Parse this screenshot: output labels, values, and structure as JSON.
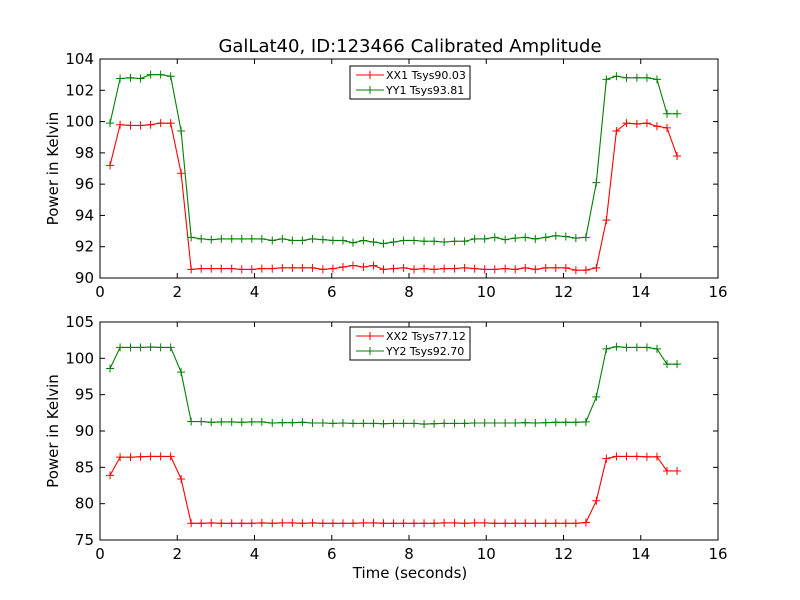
{
  "chart_data": [
    {
      "type": "line",
      "title": "GalLat40, ID:123466 Calibrated Amplitude",
      "xlabel": "",
      "ylabel": "Power in Kelvin",
      "xlim": [
        0,
        16
      ],
      "ylim": [
        90,
        104
      ],
      "xticks": [
        0,
        2,
        4,
        6,
        8,
        10,
        12,
        14,
        16
      ],
      "yticks": [
        90,
        92,
        94,
        96,
        98,
        100,
        102,
        104
      ],
      "grid": false,
      "legend_position": "top-center",
      "x": [
        0.26,
        0.52,
        0.79,
        1.05,
        1.31,
        1.57,
        1.83,
        2.1,
        2.36,
        2.62,
        2.88,
        3.14,
        3.41,
        3.67,
        3.93,
        4.19,
        4.46,
        4.72,
        4.98,
        5.24,
        5.5,
        5.77,
        6.03,
        6.29,
        6.55,
        6.82,
        7.08,
        7.34,
        7.6,
        7.86,
        8.13,
        8.39,
        8.65,
        8.91,
        9.18,
        9.44,
        9.7,
        9.96,
        10.22,
        10.49,
        10.75,
        11.01,
        11.27,
        11.54,
        11.8,
        12.06,
        12.32,
        12.58,
        12.85,
        13.11,
        13.37,
        13.63,
        13.9,
        14.16,
        14.42,
        14.68,
        14.94
      ],
      "series": [
        {
          "name": "XX1 Tsys90.03",
          "color": "#ff0000",
          "values": [
            97.2,
            99.8,
            99.75,
            99.75,
            99.8,
            99.9,
            99.9,
            96.7,
            90.55,
            90.6,
            90.6,
            90.6,
            90.6,
            90.55,
            90.55,
            90.6,
            90.6,
            90.65,
            90.65,
            90.65,
            90.65,
            90.55,
            90.6,
            90.7,
            90.8,
            90.7,
            90.8,
            90.55,
            90.6,
            90.65,
            90.55,
            90.6,
            90.55,
            90.6,
            90.6,
            90.65,
            90.6,
            90.55,
            90.55,
            90.6,
            90.55,
            90.65,
            90.55,
            90.65,
            90.65,
            90.65,
            90.5,
            90.5,
            90.65,
            93.7,
            99.4,
            99.9,
            99.85,
            99.9,
            99.7,
            99.6,
            97.8
          ]
        },
        {
          "name": "YY1 Tsys93.81",
          "color": "#008000",
          "values": [
            99.9,
            102.75,
            102.8,
            102.75,
            103.0,
            103.0,
            102.9,
            99.4,
            92.6,
            92.5,
            92.45,
            92.5,
            92.5,
            92.5,
            92.5,
            92.5,
            92.4,
            92.5,
            92.4,
            92.4,
            92.5,
            92.45,
            92.4,
            92.4,
            92.25,
            92.4,
            92.3,
            92.2,
            92.3,
            92.4,
            92.4,
            92.35,
            92.35,
            92.3,
            92.35,
            92.35,
            92.5,
            92.5,
            92.6,
            92.45,
            92.55,
            92.6,
            92.5,
            92.6,
            92.7,
            92.65,
            92.55,
            92.6,
            96.1,
            102.7,
            102.9,
            102.8,
            102.8,
            102.8,
            102.7,
            100.5,
            100.5
          ]
        }
      ]
    },
    {
      "type": "line",
      "title": "",
      "xlabel": "Time (seconds)",
      "ylabel": "Power in Kelvin",
      "xlim": [
        0,
        16
      ],
      "ylim": [
        75,
        105
      ],
      "xticks": [
        0,
        2,
        4,
        6,
        8,
        10,
        12,
        14,
        16
      ],
      "yticks": [
        75,
        80,
        85,
        90,
        95,
        100,
        105
      ],
      "grid": false,
      "legend_position": "top-center",
      "x": [
        0.26,
        0.52,
        0.79,
        1.05,
        1.31,
        1.57,
        1.83,
        2.1,
        2.36,
        2.62,
        2.88,
        3.14,
        3.41,
        3.67,
        3.93,
        4.19,
        4.46,
        4.72,
        4.98,
        5.24,
        5.5,
        5.77,
        6.03,
        6.29,
        6.55,
        6.82,
        7.08,
        7.34,
        7.6,
        7.86,
        8.13,
        8.39,
        8.65,
        8.91,
        9.18,
        9.44,
        9.7,
        9.96,
        10.22,
        10.49,
        10.75,
        11.01,
        11.27,
        11.54,
        11.8,
        12.06,
        12.32,
        12.58,
        12.85,
        13.11,
        13.37,
        13.63,
        13.9,
        14.16,
        14.42,
        14.68,
        14.94
      ],
      "series": [
        {
          "name": "XX2 Tsys77.12",
          "color": "#ff0000",
          "values": [
            83.9,
            86.4,
            86.4,
            86.45,
            86.5,
            86.5,
            86.5,
            83.4,
            77.3,
            77.3,
            77.35,
            77.3,
            77.3,
            77.3,
            77.3,
            77.35,
            77.3,
            77.35,
            77.35,
            77.3,
            77.35,
            77.3,
            77.3,
            77.3,
            77.3,
            77.35,
            77.35,
            77.3,
            77.3,
            77.3,
            77.3,
            77.3,
            77.3,
            77.35,
            77.35,
            77.3,
            77.35,
            77.35,
            77.3,
            77.3,
            77.3,
            77.3,
            77.3,
            77.3,
            77.3,
            77.3,
            77.3,
            77.4,
            80.4,
            86.2,
            86.5,
            86.5,
            86.5,
            86.45,
            86.45,
            84.5,
            84.5
          ]
        },
        {
          "name": "YY2 Tsys92.70",
          "color": "#008000",
          "values": [
            98.6,
            101.5,
            101.5,
            101.5,
            101.55,
            101.5,
            101.5,
            98.1,
            91.3,
            91.3,
            91.2,
            91.25,
            91.25,
            91.2,
            91.25,
            91.25,
            91.1,
            91.15,
            91.15,
            91.2,
            91.1,
            91.1,
            91.05,
            91.1,
            91.05,
            91.05,
            91.05,
            91.0,
            91.05,
            91.05,
            91.05,
            90.95,
            91.0,
            91.05,
            91.05,
            91.05,
            91.1,
            91.1,
            91.1,
            91.1,
            91.1,
            91.15,
            91.1,
            91.15,
            91.2,
            91.2,
            91.2,
            91.25,
            94.7,
            101.3,
            101.6,
            101.5,
            101.5,
            101.5,
            101.3,
            99.2,
            99.2
          ]
        }
      ]
    }
  ]
}
